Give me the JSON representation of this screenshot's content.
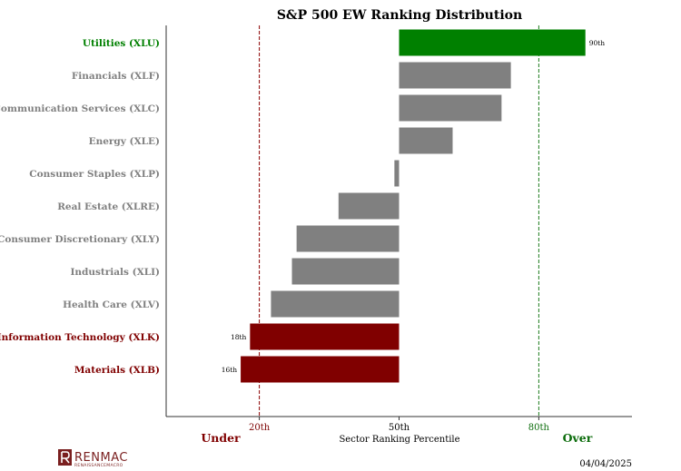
{
  "chart_data": {
    "type": "bar",
    "orientation": "horizontal",
    "title": "S&P 500 EW Ranking Distribution",
    "xlabel": "Sector Ranking Percentile",
    "xlim": [
      0,
      100
    ],
    "xticks": [
      {
        "value": 20,
        "label": "20th",
        "color": "#7b0000"
      },
      {
        "value": 50,
        "label": "50th",
        "color": "#000000"
      },
      {
        "value": 80,
        "label": "80th",
        "color": "#0a6b0a"
      }
    ],
    "baseline": 50,
    "reference_lines": [
      {
        "value": 20,
        "color": "#8b0000"
      },
      {
        "value": 80,
        "color": "#1e7b1e"
      }
    ],
    "categories": [
      "Utilities (XLU)",
      "Financials (XLF)",
      "Communication Services (XLC)",
      "Energy (XLE)",
      "Consumer Staples (XLP)",
      "Real Estate (XLRE)",
      "Consumer Discretionary (XLY)",
      "Industrials (XLI)",
      "Health Care (XLV)",
      "Information Technology (XLK)",
      "Materials (XLB)"
    ],
    "values": [
      90,
      74,
      72,
      61.5,
      49,
      37,
      28,
      27,
      22.5,
      18,
      16
    ],
    "bar_colors": [
      "#008000",
      "#808080",
      "#808080",
      "#808080",
      "#808080",
      "#808080",
      "#808080",
      "#808080",
      "#808080",
      "#800000",
      "#800000"
    ],
    "label_colors": [
      "#008000",
      "#808080",
      "#808080",
      "#808080",
      "#808080",
      "#808080",
      "#808080",
      "#808080",
      "#808080",
      "#800000",
      "#800000"
    ],
    "data_labels": [
      "90th",
      "",
      "",
      "",
      "",
      "",
      "",
      "",
      "",
      "18th",
      "16th"
    ],
    "under_label": "Under",
    "over_label": "Over",
    "under_color": "#800000",
    "over_color": "#0a6b0a",
    "date": "04/04/2025",
    "logo": {
      "name": "RENMAC",
      "subtitle": "RENAISSANCEMACRO",
      "color": "#7a1f1f"
    }
  }
}
